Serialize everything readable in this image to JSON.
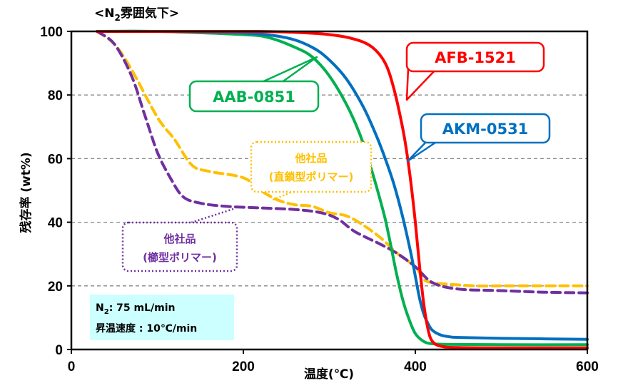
{
  "chart_data": {
    "type": "line",
    "title": "<N2雰囲気下>",
    "title_parts": {
      "open": "<N",
      "sub": "2",
      "rest": "雰囲気下>"
    },
    "xlabel": "温度(℃)",
    "ylabel": "残存率 (wt%)",
    "xlim": [
      0,
      600
    ],
    "ylim": [
      0,
      100
    ],
    "xticks": [
      0,
      200,
      400,
      600
    ],
    "yticks": [
      0,
      20,
      40,
      60,
      80,
      100
    ],
    "grid": "horizontal dashed",
    "series": [
      {
        "name": "AFB-1521",
        "color": "#ff0000",
        "style": "solid",
        "x": [
          30,
          100,
          200,
          250,
          300,
          330,
          350,
          365,
          375,
          385,
          390,
          395,
          400,
          405,
          410,
          415,
          420,
          430,
          450,
          500,
          600
        ],
        "y": [
          100,
          100,
          100,
          99.8,
          99,
          97.5,
          95,
          90,
          82,
          70,
          62,
          52,
          40,
          26,
          14,
          6,
          2.5,
          1,
          0.6,
          0.5,
          0.5
        ]
      },
      {
        "name": "AKM-0531",
        "color": "#0070c0",
        "style": "solid",
        "x": [
          30,
          100,
          200,
          250,
          280,
          300,
          320,
          340,
          355,
          365,
          375,
          385,
          395,
          400,
          405,
          410,
          415,
          420,
          430,
          440,
          450,
          500,
          600
        ],
        "y": [
          100,
          100,
          99.5,
          98,
          95,
          91,
          85,
          76,
          67,
          60,
          52,
          42,
          30,
          23,
          16,
          11,
          8,
          6,
          4.5,
          4,
          3.8,
          3.5,
          3.2
        ]
      },
      {
        "name": "AAB-0851",
        "color": "#00b050",
        "style": "solid",
        "x": [
          30,
          100,
          200,
          230,
          260,
          280,
          300,
          320,
          335,
          345,
          355,
          365,
          372,
          378,
          385,
          392,
          400,
          410,
          420,
          440,
          500,
          600
        ],
        "y": [
          100,
          100,
          99,
          98,
          95,
          92,
          86,
          77,
          68,
          60,
          51,
          41,
          32,
          24,
          16,
          10,
          5,
          2.5,
          1.8,
          1.6,
          1.5,
          1.5
        ]
      },
      {
        "name": "他社品(直鎖型ポリマー)",
        "color": "#ffc000",
        "style": "dashed",
        "x": [
          30,
          50,
          70,
          100,
          120,
          140,
          160,
          200,
          220,
          240,
          260,
          280,
          300,
          320,
          340,
          360,
          380,
          400,
          410,
          420,
          440,
          470,
          500,
          550,
          600
        ],
        "y": [
          100,
          96,
          88,
          73,
          66,
          58,
          56,
          54,
          50,
          47,
          45.5,
          45,
          43,
          42,
          39,
          35,
          30,
          26,
          22,
          21,
          20.5,
          20,
          20,
          20,
          20
        ]
      },
      {
        "name": "他社品(櫛型ポリマー)",
        "color": "#7030a0",
        "style": "dashed",
        "x": [
          30,
          50,
          70,
          85,
          100,
          115,
          130,
          150,
          180,
          220,
          260,
          290,
          310,
          330,
          360,
          380,
          400,
          420,
          450,
          500,
          550,
          600
        ],
        "y": [
          100,
          96,
          86,
          74,
          62,
          54,
          48,
          46,
          45,
          44.5,
          44,
          43,
          41,
          37,
          33,
          30,
          26,
          21,
          19,
          18.5,
          18,
          17.8
        ]
      }
    ],
    "annotations": [
      {
        "label": "AFB-1521",
        "color": "#ff0000",
        "style": "solid"
      },
      {
        "label": "AKM-0531",
        "color": "#0070c0",
        "style": "solid"
      },
      {
        "label": "AAB-0851",
        "color": "#00b050",
        "style": "solid"
      },
      {
        "line1": "他社品",
        "line2": "(直鎖型ポリマー)",
        "color": "#ffc000",
        "style": "dotted"
      },
      {
        "line1": "他社品",
        "line2": "(櫛型ポリマー)",
        "color": "#7030a0",
        "style": "dotted"
      }
    ],
    "conditions": {
      "line1_prefix": "N",
      "line1_sub": "2",
      "line1_rest": ": 75 mL/min",
      "line2": "昇温速度 : 10℃/min",
      "background": "#ccffff"
    }
  }
}
